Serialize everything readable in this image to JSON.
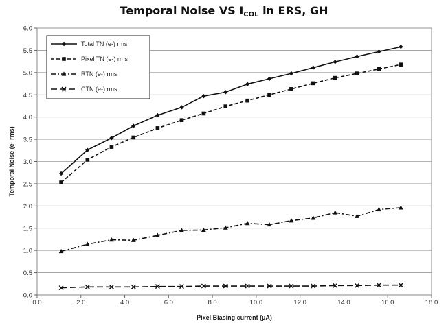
{
  "chart_data": {
    "type": "line",
    "title_main": "Temporal Noise VS I",
    "title_sub": "COL",
    "title_rest": " in ERS, GH",
    "xlabel": "Pixel Biasing  current (µA)",
    "ylabel": "Temporal Noise (e- rms)",
    "xlim": [
      0,
      18
    ],
    "ylim": [
      0,
      6
    ],
    "xticks": [
      "0.0",
      "2.0",
      "4.0",
      "6.0",
      "8.0",
      "10.0",
      "12.0",
      "14.0",
      "16.0",
      "18.0"
    ],
    "yticks": [
      "0.0",
      "0.5",
      "1.0",
      "1.5",
      "2.0",
      "2.5",
      "3.0",
      "3.5",
      "4.0",
      "4.5",
      "5.0",
      "5.5",
      "6.0"
    ],
    "grid": "horizontal",
    "legend_position": "top-left",
    "x": [
      1.1,
      2.3,
      3.4,
      4.4,
      5.5,
      6.6,
      7.6,
      8.6,
      9.6,
      10.6,
      11.6,
      12.6,
      13.6,
      14.6,
      15.6,
      16.6
    ],
    "series": [
      {
        "name": "Total TN (e-) rms",
        "marker": "diamond",
        "dash": "solid",
        "values": [
          2.73,
          3.26,
          3.53,
          3.8,
          4.04,
          4.22,
          4.47,
          4.56,
          4.74,
          4.86,
          4.98,
          5.11,
          5.24,
          5.36,
          5.47,
          5.58
        ]
      },
      {
        "name": "Pixel TN (e-) rms",
        "marker": "square",
        "dash": "dashed",
        "values": [
          2.53,
          3.04,
          3.33,
          3.54,
          3.75,
          3.93,
          4.08,
          4.24,
          4.37,
          4.5,
          4.63,
          4.76,
          4.88,
          4.98,
          5.08,
          5.18
        ]
      },
      {
        "name": "RTN (e-) rms",
        "marker": "triangle",
        "dash": "dashdot",
        "values": [
          0.98,
          1.14,
          1.24,
          1.23,
          1.34,
          1.45,
          1.46,
          1.51,
          1.61,
          1.58,
          1.67,
          1.73,
          1.85,
          1.77,
          1.92,
          1.96
        ]
      },
      {
        "name": "CTN (e-) rms",
        "marker": "x",
        "dash": "longdash",
        "values": [
          0.16,
          0.18,
          0.18,
          0.18,
          0.19,
          0.19,
          0.2,
          0.2,
          0.2,
          0.2,
          0.2,
          0.2,
          0.21,
          0.21,
          0.22,
          0.22
        ]
      }
    ]
  }
}
